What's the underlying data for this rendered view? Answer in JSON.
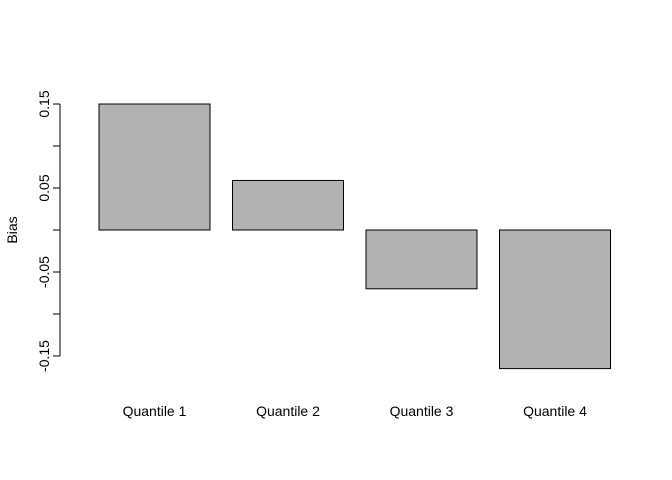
{
  "chart_data": {
    "type": "bar",
    "title": "",
    "xlabel": "",
    "ylabel": "Bias",
    "categories": [
      "Quantile 1",
      "Quantile 2",
      "Quantile 3",
      "Quantile 4"
    ],
    "values": [
      0.15,
      0.059,
      -0.07,
      -0.165
    ],
    "ylim": [
      -0.15,
      0.15
    ],
    "yticks": [
      -0.15,
      -0.1,
      -0.05,
      0.0,
      0.05,
      0.1,
      0.15
    ],
    "ytick_labels": [
      "-0.15",
      "",
      "-0.05",
      "",
      "0.05",
      "",
      "0.15"
    ],
    "grid": false,
    "legend": "none",
    "bar_color": "#b2b2b2",
    "bar_border_color": "#000000"
  }
}
